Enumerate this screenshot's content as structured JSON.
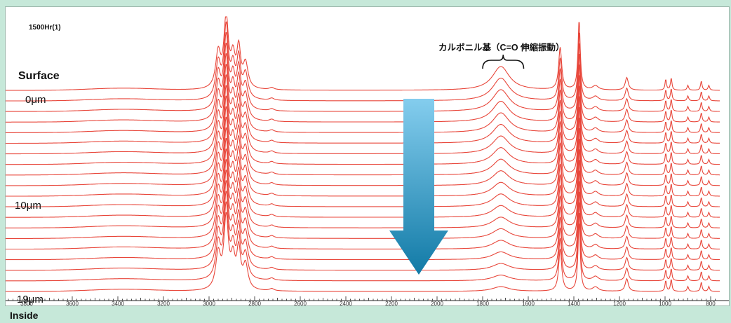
{
  "chart_data": {
    "type": "line",
    "title": "1500Hr(1)",
    "xlabel": "",
    "ylabel": "",
    "xlim": [
      3900,
      760
    ],
    "x_reversed": true,
    "x_ticks": [
      3800,
      3600,
      3400,
      3200,
      3000,
      2800,
      2600,
      2400,
      2200,
      2000,
      1800,
      1600,
      1400,
      1200,
      1000,
      800
    ],
    "series_count": 20,
    "offset_stacked": true,
    "labels": {
      "surface": "Surface",
      "inside": "Inside",
      "depth_top": "0μm",
      "depth_mid": "10μm",
      "depth_bottom": "19μm"
    },
    "annotation": {
      "text": "カルボニル基（C=O 伸縮振動）",
      "x_range": [
        1800,
        1620
      ]
    },
    "peaks": [
      {
        "x": 2960,
        "height": 50,
        "width": 13
      },
      {
        "x": 2925,
        "height": 100,
        "width": 12
      },
      {
        "x": 2895,
        "height": 40,
        "width": 11
      },
      {
        "x": 2870,
        "height": 54,
        "width": 10
      },
      {
        "x": 2840,
        "height": 35,
        "width": 13
      },
      {
        "x": 2725,
        "height": 3,
        "width": 12
      },
      {
        "x": 1720,
        "height": 34,
        "width": 45,
        "decays_with_depth": true
      },
      {
        "x": 1460,
        "height": 60,
        "width": 8
      },
      {
        "x": 1377,
        "height": 98,
        "width": 6
      },
      {
        "x": 1305,
        "height": 6,
        "width": 15
      },
      {
        "x": 1168,
        "height": 18,
        "width": 8
      },
      {
        "x": 997,
        "height": 15,
        "width": 4
      },
      {
        "x": 973,
        "height": 17,
        "width": 4
      },
      {
        "x": 900,
        "height": 7,
        "width": 4
      },
      {
        "x": 841,
        "height": 13,
        "width": 4
      },
      {
        "x": 808,
        "height": 7,
        "width": 4
      }
    ],
    "arrow_direction": "down",
    "colors": {
      "spectra": "#e8463a",
      "arrow_top": "#84cdee",
      "arrow_bottom": "#117aa6",
      "background": "#c6e8d9"
    }
  }
}
